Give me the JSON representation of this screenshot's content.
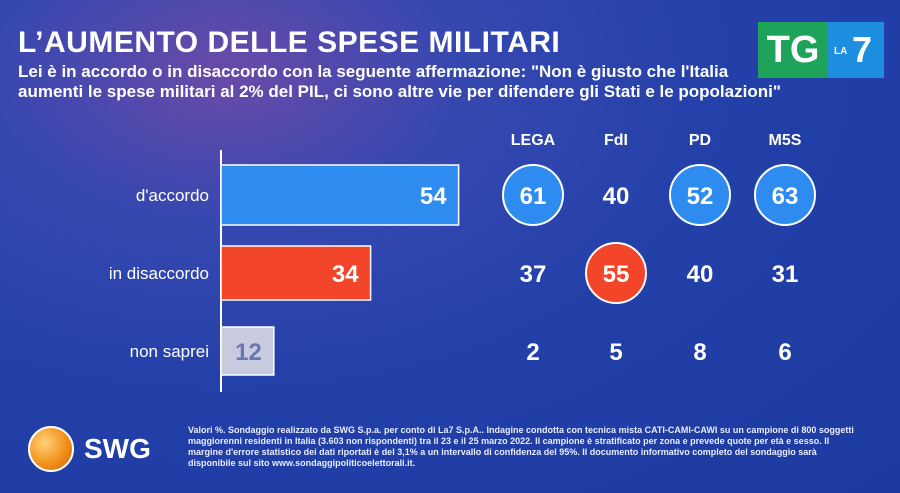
{
  "header": {
    "title": "L’AUMENTO DELLE SPESE MILITARI",
    "question_line1": "Lei è in accordo o in disaccordo con la seguente affermazione: \"Non è giusto che l'Italia",
    "question_line2": "aumenti le spese militari al 2% del PIL, ci sono altre vie per difendere gli Stati e le popolazioni\""
  },
  "logo": {
    "tg": "TG",
    "la": "LA",
    "seven": "7"
  },
  "chart_data": {
    "type": "bar",
    "title": "L’AUMENTO DELLE SPESE MILITARI",
    "unit": "%",
    "categories": [
      "d'accordo",
      "in disaccordo",
      "non saprei"
    ],
    "values": [
      54,
      34,
      12
    ],
    "colors": [
      "#2e8cf0",
      "#f2452a",
      "#c8cbe0"
    ],
    "xlim": [
      0,
      100
    ],
    "party_columns": [
      "LEGA",
      "FdI",
      "PD",
      "M5S"
    ],
    "party_values": [
      [
        61,
        40,
        52,
        63
      ],
      [
        37,
        55,
        40,
        31
      ],
      [
        2,
        5,
        8,
        6
      ]
    ],
    "highlight": [
      [
        true,
        false,
        true,
        true
      ],
      [
        false,
        true,
        false,
        false
      ],
      [
        false,
        false,
        false,
        false
      ]
    ],
    "highlight_colors": [
      "#2e8cf0",
      "#f2452a"
    ]
  },
  "footer": {
    "brand": "SWG",
    "note": "Valori %. Sondaggio realizzato da SWG S.p.a. per conto di La7 S.p.A.. Indagine condotta con tecnica mista CATI-CAMI-CAWI su un campione di 800 soggetti maggiorenni residenti in Italia (3.603 non rispondenti) tra il 23 e il 25 marzo 2022. Il campione è stratificato per zona e prevede quote per età e sesso. Il margine d'errore statistico dei dati riportati è del 3,1% a un intervallo di confidenza del 95%. Il documento informativo completo del sondaggio sarà disponibile sul sito www.sondaggipoliticoelettorali.it."
  }
}
